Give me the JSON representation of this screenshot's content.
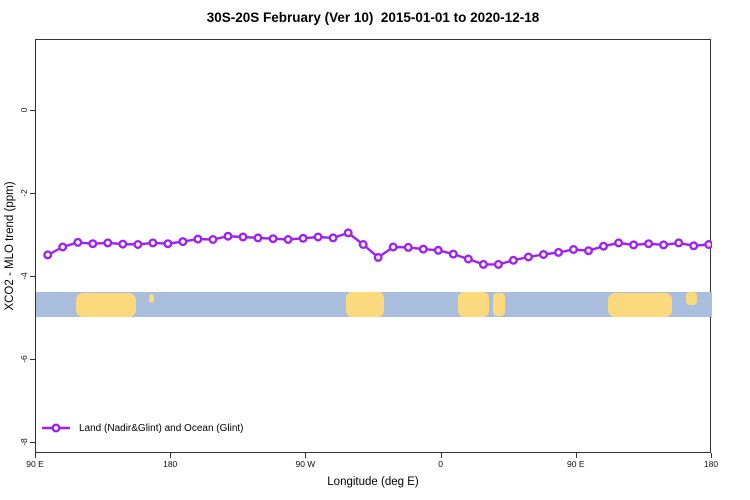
{
  "figure": {
    "background": "#ffffff",
    "border_color": "#333333"
  },
  "chart_data": {
    "type": "line",
    "title": "30S-20S February (Ver 10)  2015-01-01 to 2020-12-18",
    "xlabel": "Longitude (deg E)",
    "ylabel": "XCO2 - MLO trend (ppm)",
    "xlim": [
      0,
      450
    ],
    "ylim": [
      -8.27,
      1.71
    ],
    "grid": false,
    "legend_position": "bottom-left",
    "x_ticks": [
      {
        "v": 0,
        "label": "90 E"
      },
      {
        "v": 90,
        "label": "180"
      },
      {
        "v": 180,
        "label": "90 W"
      },
      {
        "v": 270,
        "label": "0"
      },
      {
        "v": 360,
        "label": "90 E"
      },
      {
        "v": 450,
        "label": "180"
      }
    ],
    "y_ticks": [
      {
        "v": 0,
        "label": "0"
      },
      {
        "v": -2,
        "label": "-2"
      },
      {
        "v": -4,
        "label": "-4"
      },
      {
        "v": -6,
        "label": "-6"
      },
      {
        "v": -8,
        "label": "-8"
      }
    ],
    "series": [
      {
        "name": "Land (Nadir&Glint) and Ocean (Glint)",
        "color": "#A020F0",
        "marker": "open-circle",
        "x": [
          7.8,
          17.8,
          27.8,
          37.8,
          47.8,
          57.8,
          67.8,
          77.8,
          87.8,
          97.8,
          107.8,
          117.8,
          127.8,
          137.8,
          147.8,
          157.8,
          167.8,
          177.8,
          187.8,
          197.8,
          207.8,
          217.8,
          227.8,
          237.8,
          247.8,
          257.8,
          267.8,
          277.8,
          287.8,
          297.8,
          307.8,
          317.8,
          327.8,
          337.8,
          347.8,
          357.8,
          367.8,
          377.8,
          387.8,
          397.8,
          407.8,
          417.8,
          427.8,
          437.8,
          447.8
        ],
        "y": [
          -3.47,
          -3.28,
          -3.17,
          -3.2,
          -3.18,
          -3.21,
          -3.22,
          -3.18,
          -3.2,
          -3.15,
          -3.09,
          -3.1,
          -3.02,
          -3.04,
          -3.06,
          -3.08,
          -3.1,
          -3.07,
          -3.04,
          -3.06,
          -2.94,
          -3.22,
          -3.53,
          -3.28,
          -3.29,
          -3.33,
          -3.36,
          -3.45,
          -3.57,
          -3.7,
          -3.7,
          -3.6,
          -3.52,
          -3.46,
          -3.41,
          -3.34,
          -3.37,
          -3.26,
          -3.18,
          -3.23,
          -3.2,
          -3.23,
          -3.18,
          -3.25,
          -3.22
        ]
      }
    ],
    "map_band": {
      "description": "ocean-land strip for 30S-20S latitude band",
      "ppm_top": -4.36,
      "ppm_bottom": -4.96,
      "ocean_color": "#A8BEDC",
      "land_color": "#FCD97C",
      "land_segments": [
        {
          "name": "australia",
          "x0": 26.5,
          "x1": 66.5,
          "inset_top": 1,
          "inset_bottom": 0,
          "radius": 7
        },
        {
          "name": "island",
          "x0": 75.5,
          "x1": 78.5,
          "inset_top": 2,
          "inset_bottom": 14,
          "radius": 3
        },
        {
          "name": "south-america",
          "x0": 206.0,
          "x1": 231.5,
          "inset_top": 0,
          "inset_bottom": 0,
          "radius": 6
        },
        {
          "name": "africa",
          "x0": 281.0,
          "x1": 301.5,
          "inset_top": 0,
          "inset_bottom": 0,
          "radius": 6
        },
        {
          "name": "madagascar",
          "x0": 304.5,
          "x1": 312.5,
          "inset_top": 1,
          "inset_bottom": 1,
          "radius": 4
        },
        {
          "name": "australia-2",
          "x0": 381.0,
          "x1": 423.5,
          "inset_top": 1,
          "inset_bottom": 0,
          "radius": 7
        },
        {
          "name": "island-2",
          "x0": 432.5,
          "x1": 440.0,
          "inset_top": 0,
          "inset_bottom": 12,
          "radius": 4
        }
      ]
    }
  }
}
